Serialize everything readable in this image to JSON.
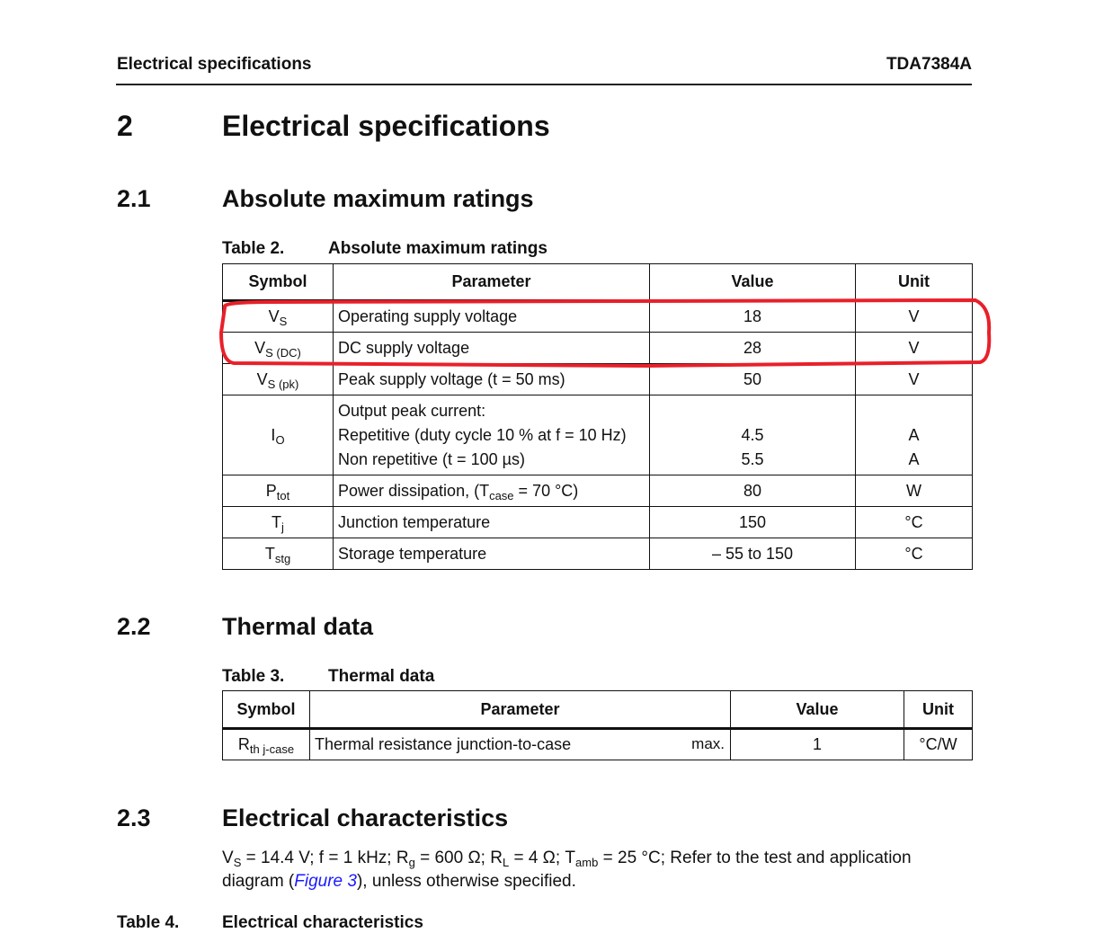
{
  "header": {
    "left": "Electrical specifications",
    "right": "TDA7384A"
  },
  "section2": {
    "num": "2",
    "title": "Electrical specifications"
  },
  "section21": {
    "num": "2.1",
    "title": "Absolute maximum ratings"
  },
  "table2": {
    "label": "Table 2.",
    "title": "Absolute maximum ratings",
    "columns": [
      "Symbol",
      "Parameter",
      "Value",
      "Unit"
    ],
    "rows": [
      {
        "sym": "V",
        "sub": "S",
        "param": "Operating supply voltage",
        "value": "18",
        "unit": "V"
      },
      {
        "sym": "V",
        "sub": "S (DC)",
        "param": "DC supply voltage",
        "value": "28",
        "unit": "V"
      },
      {
        "sym": "V",
        "sub": "S (pk)",
        "param": "Peak supply voltage (t = 50 ms)",
        "value": "50",
        "unit": "V"
      },
      {
        "sym": "I",
        "sub": "O",
        "param": "Output peak current:",
        "param2": "Repetitive (duty cycle 10 % at f = 10 Hz)",
        "param3": "Non repetitive (t = 100 µs)",
        "value2": "4.5",
        "value3": "5.5",
        "unit2": "A",
        "unit3": "A"
      },
      {
        "sym": "P",
        "sub": "tot",
        "param": "Power dissipation, (T",
        "param_sub": "case",
        "param_tail": " = 70 °C)",
        "value": "80",
        "unit": "W"
      },
      {
        "sym": "T",
        "sub": "j",
        "param": "Junction temperature",
        "value": "150",
        "unit": "°C"
      },
      {
        "sym": "T",
        "sub": "stg",
        "param": "Storage temperature",
        "value": "– 55 to 150",
        "unit": "°C"
      }
    ],
    "highlight_color": "#e8202a"
  },
  "section22": {
    "num": "2.2",
    "title": "Thermal data"
  },
  "table3": {
    "label": "Table 3.",
    "title": "Thermal data",
    "columns": [
      "Symbol",
      "Parameter",
      "Value",
      "Unit"
    ],
    "rows": [
      {
        "sym": "R",
        "sub": "th j-case",
        "param": "Thermal resistance junction-to-case",
        "qualifier": "max.",
        "value": "1",
        "unit": "°C/W"
      }
    ]
  },
  "section23": {
    "num": "2.3",
    "title": "Electrical characteristics",
    "cond": {
      "vs": "V",
      "vs_sub": "S",
      "a": " = 14.4 V; f = 1 kHz; R",
      "rg_sub": "g",
      "b": " = 600 Ω; R",
      "rl_sub": "L",
      "c": " = 4 Ω; T",
      "tamb_sub": "amb",
      "d": " = 25 °C; Refer to the test and application",
      "line2a": "diagram (",
      "link": "Figure 3",
      "line2b": "), unless otherwise specified."
    }
  },
  "table4": {
    "label": "Table 4.",
    "title": "Electrical characteristics"
  }
}
